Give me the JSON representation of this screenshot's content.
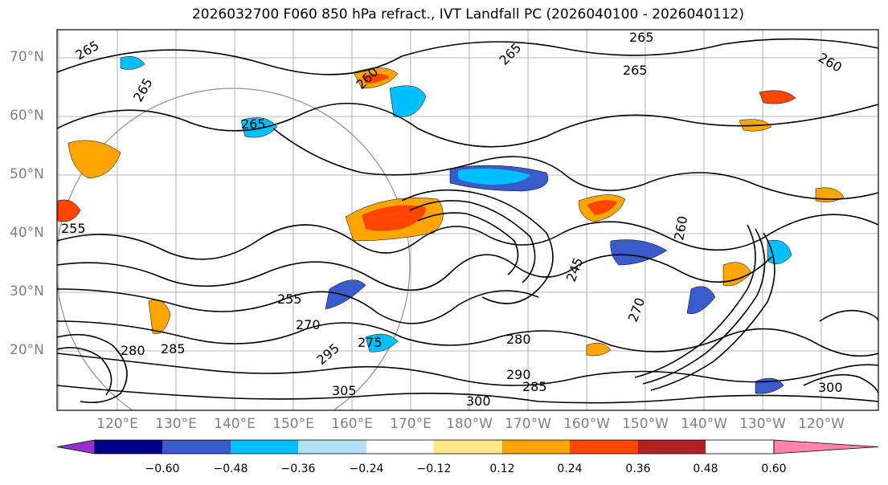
{
  "title": "2026032700 F060 850 hPa refract., IVT Landfall PC (2026040100 - 2026040112)",
  "latitude_labels": [
    "70°N",
    "60°N",
    "50°N",
    "40°N",
    "30°N",
    "20°N"
  ],
  "longitude_labels": [
    "120°E",
    "130°E",
    "140°E",
    "150°E",
    "160°E",
    "170°E",
    "180°W",
    "170°W",
    "160°W",
    "150°W",
    "140°W",
    "130°W",
    "120°W"
  ],
  "contour_labels": [
    "265",
    "265",
    "265",
    "265",
    "260",
    "265",
    "255",
    "265",
    "260",
    "260",
    "255",
    "270",
    "275",
    "280",
    "285",
    "290",
    "295",
    "300",
    "305",
    "300",
    "285",
    "280",
    "245",
    "270"
  ],
  "colorbar": {
    "ticks": [
      "−0.60",
      "−0.48",
      "−0.36",
      "−0.24",
      "−0.12",
      "0.12",
      "0.24",
      "0.36",
      "0.48",
      "0.60"
    ],
    "colors": [
      "#9932cc",
      "#00008b",
      "#3a5bcb",
      "#00bfff",
      "#b0e0f6",
      "#ffffff",
      "#ffe68a",
      "#ffa500",
      "#ff4500",
      "#b22222",
      "#ff85a8"
    ]
  }
}
